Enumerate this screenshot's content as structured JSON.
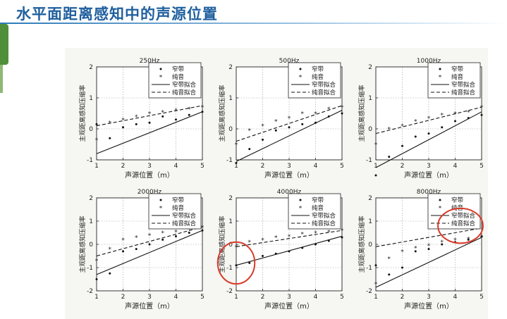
{
  "slide": {
    "title": "水平面距离感知中的声源位置",
    "accent_color": "#1f5f9e"
  },
  "chart_data": [
    {
      "type": "scatter",
      "title": "250Hz",
      "xlabel": "声源位置（m）",
      "ylabel": "主观距离感知压缩率",
      "xlim": [
        1,
        5
      ],
      "ylim": [
        -1,
        2
      ],
      "xticks": [
        1,
        2,
        3,
        4,
        5
      ],
      "yticks": [
        -1,
        0,
        1,
        2
      ],
      "grid": true,
      "legend_position": "top-right",
      "series": [
        {
          "name": "窄带",
          "marker": "dot",
          "x": [
            1.0,
            1.5,
            2.0,
            2.5,
            3.0,
            3.5,
            4.0,
            4.5,
            5.0
          ],
          "y": [
            0.15,
            -0.3,
            0.05,
            0.15,
            0.2,
            0.4,
            0.3,
            0.45,
            0.55
          ]
        },
        {
          "name": "纯音",
          "marker": "star",
          "x": [
            1.0,
            1.5,
            2.0,
            2.5,
            3.0,
            3.5,
            4.0,
            4.5,
            5.0
          ],
          "y": [
            -0.35,
            0.2,
            0.3,
            0.4,
            0.5,
            0.55,
            0.6,
            0.65,
            0.7
          ]
        },
        {
          "name": "窄带拟合",
          "style": "solid",
          "x": [
            1,
            5
          ],
          "y": [
            -0.8,
            0.55
          ]
        },
        {
          "name": "纯音拟合",
          "style": "dashed",
          "x": [
            1,
            5
          ],
          "y": [
            0.1,
            0.75
          ]
        }
      ]
    },
    {
      "type": "scatter",
      "title": "500Hz",
      "xlabel": "声源位置（m）",
      "ylabel": "主观距离感知压缩率",
      "xlim": [
        1,
        5
      ],
      "ylim": [
        -1,
        2
      ],
      "xticks": [
        1,
        2,
        3,
        4,
        5
      ],
      "yticks": [
        -1,
        0,
        1,
        2
      ],
      "grid": true,
      "legend_position": "top-right",
      "series": [
        {
          "name": "窄带",
          "marker": "dot",
          "x": [
            1.0,
            1.5,
            2.0,
            2.5,
            3.0,
            3.5,
            4.0,
            4.5,
            5.0
          ],
          "y": [
            -1.1,
            -0.65,
            -0.35,
            -0.05,
            0.05,
            0.15,
            0.2,
            0.4,
            0.5
          ]
        },
        {
          "name": "纯音",
          "marker": "star",
          "x": [
            1.0,
            1.5,
            2.0,
            2.5,
            3.0,
            3.5,
            4.0,
            4.5,
            5.0
          ],
          "y": [
            -0.5,
            -0.05,
            0.1,
            0.25,
            0.35,
            0.5,
            0.5,
            0.65,
            0.7
          ]
        },
        {
          "name": "窄带拟合",
          "style": "solid",
          "x": [
            1,
            5
          ],
          "y": [
            -1.05,
            0.6
          ]
        },
        {
          "name": "纯音拟合",
          "style": "dashed",
          "x": [
            1,
            5
          ],
          "y": [
            -0.4,
            0.75
          ]
        }
      ]
    },
    {
      "type": "scatter",
      "title": "1000Hz",
      "xlabel": "声源位置（m）",
      "ylabel": "主观距离感知压缩率",
      "xlim": [
        1,
        5
      ],
      "ylim": [
        -1,
        2
      ],
      "xticks": [
        1,
        2,
        3,
        4,
        5
      ],
      "yticks": [
        -1,
        0,
        1,
        2
      ],
      "grid": true,
      "legend_position": "top-right",
      "series": [
        {
          "name": "窄带",
          "marker": "dot",
          "x": [
            1.0,
            1.5,
            2.0,
            2.5,
            3.0,
            3.5,
            4.0,
            4.5,
            5.0
          ],
          "y": [
            -1.5,
            -0.9,
            -0.55,
            -0.25,
            -0.15,
            0.05,
            0.25,
            0.35,
            0.45
          ]
        },
        {
          "name": "纯音",
          "marker": "star",
          "x": [
            1.0,
            1.5,
            2.0,
            2.5,
            3.0,
            3.5,
            4.0,
            4.5,
            5.0
          ],
          "y": [
            -0.5,
            0.0,
            0.1,
            0.25,
            0.35,
            0.45,
            0.5,
            0.55,
            0.7
          ]
        },
        {
          "name": "窄带拟合",
          "style": "solid",
          "x": [
            1,
            5
          ],
          "y": [
            -1.25,
            0.55
          ]
        },
        {
          "name": "纯音拟合",
          "style": "dashed",
          "x": [
            1,
            5
          ],
          "y": [
            -0.15,
            0.7
          ]
        }
      ]
    },
    {
      "type": "scatter",
      "title": "2000Hz",
      "xlabel": "声源位置（m）",
      "ylabel": "主观距离感知压缩率",
      "xlim": [
        1,
        5
      ],
      "ylim": [
        -2,
        2
      ],
      "xticks": [
        1,
        2,
        3,
        4,
        5
      ],
      "yticks": [
        -2,
        -1,
        0,
        1,
        2
      ],
      "grid": true,
      "legend_position": "top-right",
      "series": [
        {
          "name": "窄带",
          "marker": "dot",
          "x": [
            1.0,
            1.5,
            2.0,
            2.5,
            3.0,
            3.5,
            4.0,
            4.5,
            5.0
          ],
          "y": [
            -1.5,
            -1.25,
            -0.3,
            -0.2,
            0.0,
            0.2,
            0.35,
            0.5,
            0.6
          ]
        },
        {
          "name": "纯音",
          "marker": "star",
          "x": [
            1.0,
            1.5,
            2.0,
            2.5,
            3.0,
            3.5,
            4.0,
            4.5,
            5.0
          ],
          "y": [
            -0.7,
            -0.2,
            0.2,
            0.3,
            0.4,
            0.5,
            0.55,
            0.65,
            0.75
          ]
        },
        {
          "name": "窄带拟合",
          "style": "solid",
          "x": [
            1,
            5
          ],
          "y": [
            -1.3,
            0.6
          ]
        },
        {
          "name": "纯音拟合",
          "style": "dashed",
          "x": [
            1,
            5
          ],
          "y": [
            -0.5,
            0.75
          ]
        }
      ]
    },
    {
      "type": "scatter",
      "title": "4000Hz",
      "xlabel": "声源位置（m）",
      "ylabel": "主观距离感知压缩率",
      "xlim": [
        1,
        5
      ],
      "ylim": [
        -2,
        2
      ],
      "xticks": [
        1,
        2,
        3,
        4,
        5
      ],
      "yticks": [
        -2,
        -1,
        0,
        1,
        2
      ],
      "grid": true,
      "legend_position": "top-right",
      "series": [
        {
          "name": "窄带",
          "marker": "dot",
          "x": [
            1.0,
            1.5,
            2.0,
            2.5,
            3.0,
            3.5,
            4.0,
            4.5,
            5.0
          ],
          "y": [
            -0.9,
            -0.8,
            -0.5,
            -0.4,
            -0.3,
            -0.15,
            0.0,
            0.15,
            0.3
          ]
        },
        {
          "name": "纯音",
          "marker": "star",
          "x": [
            1.0,
            1.5,
            2.0,
            2.5,
            3.0,
            3.5,
            4.0,
            4.5,
            5.0
          ],
          "y": [
            -0.1,
            0.1,
            0.2,
            0.3,
            0.35,
            0.45,
            0.5,
            0.55,
            0.6
          ]
        },
        {
          "name": "窄带拟合",
          "style": "solid",
          "x": [
            1,
            5
          ],
          "y": [
            -0.9,
            0.35
          ]
        },
        {
          "name": "纯音拟合",
          "style": "dashed",
          "x": [
            1,
            5
          ],
          "y": [
            -0.1,
            0.6
          ]
        }
      ]
    },
    {
      "type": "scatter",
      "title": "8000Hz",
      "xlabel": "声源位置（m）",
      "ylabel": "主观距离感知压缩率",
      "xlim": [
        1,
        5
      ],
      "ylim": [
        -2,
        2
      ],
      "xticks": [
        1,
        2,
        3,
        4,
        5
      ],
      "yticks": [
        -2,
        -1,
        0,
        1,
        2
      ],
      "grid": true,
      "legend_position": "top-right",
      "series": [
        {
          "name": "窄带",
          "marker": "dot",
          "x": [
            1.0,
            1.5,
            2.0,
            2.5,
            3.0,
            3.5,
            4.0,
            4.5,
            5.0
          ],
          "y": [
            -0.9,
            -1.3,
            -1.0,
            -0.3,
            -0.2,
            0.0,
            0.1,
            0.2,
            0.35
          ]
        },
        {
          "name": "纯音",
          "marker": "star",
          "x": [
            1.0,
            1.5,
            2.0,
            2.5,
            3.0,
            3.5,
            4.0,
            4.5,
            5.0
          ],
          "y": [
            -1.7,
            -0.6,
            -0.3,
            -0.15,
            -0.05,
            0.1,
            0.2,
            0.25,
            0.3
          ]
        },
        {
          "name": "窄带拟合",
          "style": "solid",
          "x": [
            1,
            5
          ],
          "y": [
            -1.85,
            0.3
          ]
        },
        {
          "name": "纯音拟合",
          "style": "dashed",
          "x": [
            1,
            5
          ],
          "y": [
            -0.1,
            0.7
          ]
        }
      ]
    }
  ],
  "highlights": [
    {
      "chart": 4,
      "center": [
        1.0,
        -0.8
      ],
      "radius": [
        0.7,
        0.9
      ],
      "color": "#d93a2b"
    },
    {
      "chart": 5,
      "center": [
        4.2,
        0.8
      ],
      "radius": [
        0.85,
        0.75
      ],
      "color": "#d93a2b"
    }
  ]
}
